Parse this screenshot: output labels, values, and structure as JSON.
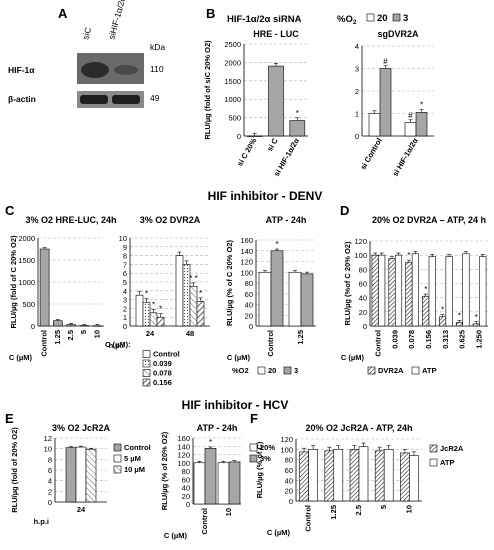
{
  "panels": {
    "A": {
      "letter": "A",
      "lanes": [
        "siC",
        "siHIF-1α/2α"
      ],
      "kda_label": "kDa",
      "bands": [
        {
          "label": "HIF-1α",
          "kda": "110"
        },
        {
          "label": "β-actin",
          "kda": "49"
        }
      ]
    },
    "B": {
      "letter": "B",
      "header": "HIF-1α/2α siRNA",
      "legend_title": "%O",
      "legend_title_sub": "2"
    },
    "C": {
      "letter": "C"
    },
    "D": {
      "letter": "D"
    },
    "E": {
      "letter": "E"
    },
    "F": {
      "letter": "F"
    }
  },
  "section_titles": {
    "denv": "HIF inhibitor - DENV",
    "hcv": "HIF inhibitor - HCV"
  },
  "colors": {
    "white_bar": "#ffffff",
    "gray_bar": "#a6a6a6",
    "hatch_bar": "#8c8c8c",
    "grid": "#b3b3b3",
    "text": "#000000"
  },
  "chart_data": [
    {
      "id": "B1",
      "type": "bar",
      "title": "HRE - LUC",
      "ylabel": "RLU/µg (fold of siC 20% O2)",
      "categories": [
        "si C 20%",
        "si C",
        "si HIF-1α/2α"
      ],
      "series": [
        {
          "name": "3",
          "values": [
            null,
            1900,
            420
          ]
        }
      ],
      "first_bar": {
        "category": "si C 20%",
        "value": 0,
        "color": "white"
      },
      "ylim": [
        0,
        2500
      ],
      "yticks": [
        "0",
        "500",
        "1000",
        "1500",
        "2000",
        "2500"
      ],
      "annotations": [
        {
          "category": "si HIF-1α/2α",
          "text": "*"
        }
      ]
    },
    {
      "id": "B2",
      "type": "bar",
      "title": "sgDVR2A",
      "categories": [
        "si Control",
        "si HIF-1α/2α"
      ],
      "series": [
        {
          "name": "20",
          "values": [
            1.0,
            0.6
          ]
        },
        {
          "name": "3",
          "values": [
            3.0,
            1.05
          ]
        }
      ],
      "ylim": [
        0,
        4
      ],
      "yticks": [
        "0",
        "1",
        "2",
        "3",
        "4"
      ],
      "annotations": [
        {
          "category": "si Control",
          "series": "3",
          "text": "#"
        },
        {
          "category": "si HIF-1α/2α",
          "series": "20",
          "text": "#"
        },
        {
          "category": "si HIF-1α/2α",
          "series": "3",
          "text": "*"
        }
      ]
    },
    {
      "id": "C1",
      "type": "bar",
      "title": "3% O2 HRE-LUC, 24h",
      "ylabel": "RLU/µg (fold of C 20% O2)",
      "xlabel": "C (µM)",
      "categories": [
        "Control",
        "1.25",
        "2.5",
        "5",
        "10"
      ],
      "values": [
        1750,
        120,
        30,
        10,
        5
      ],
      "ylim": [
        0,
        2000
      ],
      "yticks": [
        "0",
        "500",
        "1000",
        "1500",
        "2000"
      ]
    },
    {
      "id": "C2",
      "type": "bar",
      "title": "3% O2 DVR2A",
      "xlabel": "h.p.i",
      "categories": [
        "24",
        "48"
      ],
      "series": [
        {
          "name": "Control",
          "values": [
            3.5,
            8.0
          ]
        },
        {
          "name": "0.039",
          "values": [
            2.7,
            7.0
          ]
        },
        {
          "name": "0.078",
          "values": [
            1.5,
            4.5
          ]
        },
        {
          "name": "0.156",
          "values": [
            1.0,
            2.8
          ]
        }
      ],
      "ylim": [
        0,
        10
      ],
      "yticks": [
        "0",
        "1",
        "2",
        "3",
        "4",
        "5",
        "6",
        "7",
        "8",
        "9",
        "10"
      ],
      "legend_title": "C (µM):",
      "annotations": [
        {
          "category": "24",
          "series": "0.039",
          "text": "*"
        },
        {
          "category": "24",
          "series": "0.078",
          "text": "*"
        },
        {
          "category": "24",
          "series": "0.156",
          "text": "*"
        },
        {
          "category": "48",
          "series": "0.078",
          "text": "* *"
        },
        {
          "category": "48",
          "series": "0.156",
          "text": "*"
        }
      ]
    },
    {
      "id": "C3",
      "type": "bar",
      "title": "ATP - 24h",
      "ylabel": "RLU/µg (% of C 20% O2)",
      "xlabel": "C (µM)",
      "categories": [
        "Control",
        "1.25"
      ],
      "series": [
        {
          "name": "20",
          "values": [
            100,
            100
          ]
        },
        {
          "name": "3",
          "values": [
            140,
            97
          ]
        }
      ],
      "ylim": [
        0,
        160
      ],
      "yticks": [
        "0",
        "20",
        "40",
        "60",
        "80",
        "100",
        "120",
        "140",
        "160"
      ],
      "legend_title": "%O2",
      "annotations": [
        {
          "category": "Control",
          "series": "3",
          "text": "*"
        }
      ]
    },
    {
      "id": "D",
      "type": "bar",
      "title": "20% O2 DVR2A – ATP, 24 h",
      "ylabel": "RLU/µg (%of C 20% O2)",
      "xlabel": "C (µM)",
      "categories": [
        "Control",
        "0.039",
        "0.078",
        "0.156",
        "0.313",
        "0.625",
        "1.250"
      ],
      "series": [
        {
          "name": "DVR2A",
          "values": [
            100,
            95,
            90,
            42,
            13,
            5,
            3
          ]
        },
        {
          "name": "ATP",
          "values": [
            100,
            100,
            102,
            98,
            98,
            102,
            98
          ]
        }
      ],
      "ylim": [
        0,
        120
      ],
      "yticks": [
        "0",
        "20",
        "40",
        "60",
        "80",
        "100",
        "120"
      ],
      "annotations": [
        {
          "category": "0.078",
          "series": "DVR2A",
          "text": "*"
        },
        {
          "category": "0.156",
          "series": "DVR2A",
          "text": "*"
        },
        {
          "category": "0.313",
          "series": "DVR2A",
          "text": "*"
        },
        {
          "category": "0.625",
          "series": "DVR2A",
          "text": "*"
        },
        {
          "category": "1.250",
          "series": "DVR2A",
          "text": "*"
        }
      ]
    },
    {
      "id": "E1",
      "type": "bar",
      "title": "3% O2 JcR2A",
      "ylabel": "RLU/µg (fold of 20% O2)",
      "xlabel": "h.p.i",
      "categories": [
        "24"
      ],
      "series": [
        {
          "name": "Control",
          "values": [
            10.2
          ]
        },
        {
          "name": "5 µM",
          "values": [
            10.3
          ]
        },
        {
          "name": "10 µM",
          "values": [
            9.9
          ]
        }
      ],
      "ylim": [
        0,
        12
      ],
      "yticks": [
        "0",
        "2",
        "4",
        "6",
        "8",
        "10",
        "12"
      ]
    },
    {
      "id": "E2",
      "type": "bar",
      "title": "ATP - 24h",
      "ylabel": "RLU/µg (% of 20% O2)",
      "xlabel": "C (µM)",
      "categories": [
        "Control",
        "10"
      ],
      "series": [
        {
          "name": "20%",
          "values": [
            100,
            100
          ]
        },
        {
          "name": "3%",
          "values": [
            135,
            102
          ]
        }
      ],
      "ylim": [
        0,
        160
      ],
      "yticks": [
        "0",
        "20",
        "40",
        "60",
        "80",
        "100",
        "120",
        "140",
        "160"
      ],
      "annotations": [
        {
          "category": "Control",
          "series": "3%",
          "text": "*"
        }
      ]
    },
    {
      "id": "F",
      "type": "bar",
      "title": "20% O2 JcR2A - ATP, 24h",
      "ylabel": "RLU/µg (% of C)",
      "xlabel": "C (µM)",
      "categories": [
        "Control",
        "1.25",
        "2.5",
        "5",
        "10"
      ],
      "series": [
        {
          "name": "JcR2A",
          "values": [
            95,
            97,
            100,
            97,
            93
          ]
        },
        {
          "name": "ATP",
          "values": [
            100,
            100,
            105,
            100,
            88
          ]
        }
      ],
      "ylim": [
        0,
        120
      ],
      "yticks": [
        "0",
        "20",
        "40",
        "60",
        "80",
        "100",
        "120"
      ]
    }
  ]
}
